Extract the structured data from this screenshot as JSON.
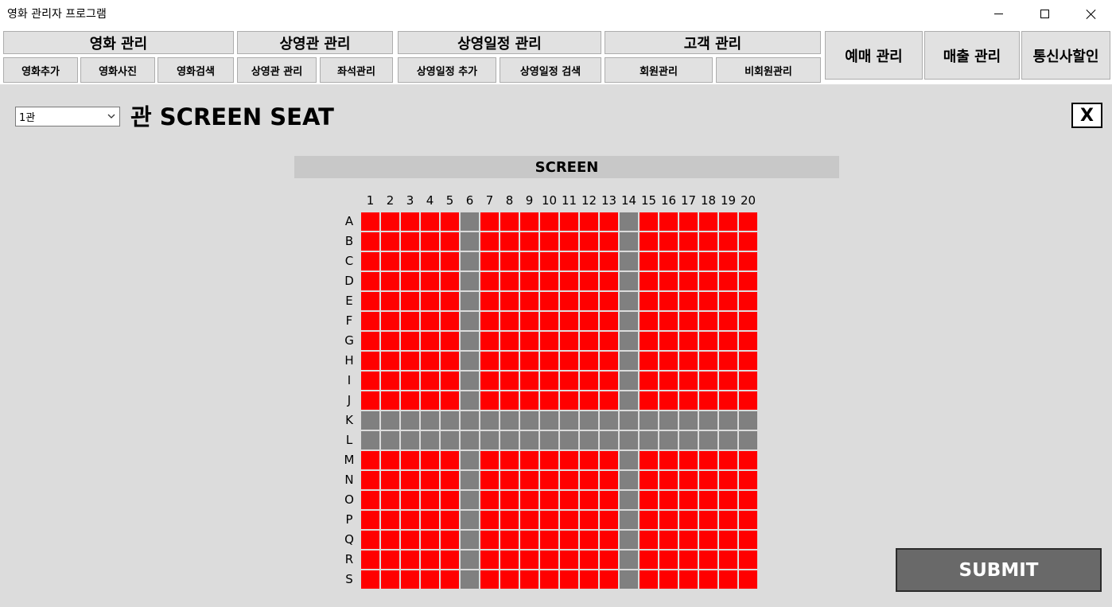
{
  "window": {
    "title": "영화 관리자 프로그램"
  },
  "menu": {
    "movie": {
      "label": "영화 관리",
      "items": [
        "영화추가",
        "영화사진",
        "영화검색"
      ]
    },
    "theater": {
      "label": "상영관 관리",
      "items": [
        "상영관 관리",
        "좌석관리"
      ]
    },
    "schedule": {
      "label": "상영일정 관리",
      "items": [
        "상영일정 추가",
        "상영일정 검색"
      ]
    },
    "customer": {
      "label": "고객 관리",
      "items": [
        "회원관리",
        "비회원관리"
      ]
    },
    "booking": "예매 관리",
    "sales": "매출 관리",
    "telecom": "통신사할인"
  },
  "main": {
    "theater_select_value": "1관",
    "heading": "관 SCREEN SEAT",
    "close_label": "X",
    "screen_label": "SCREEN",
    "submit_label": "SUBMIT"
  },
  "seating": {
    "columns": [
      "1",
      "2",
      "3",
      "4",
      "5",
      "6",
      "7",
      "8",
      "9",
      "10",
      "11",
      "12",
      "13",
      "14",
      "15",
      "16",
      "17",
      "18",
      "19",
      "20"
    ],
    "rows": [
      "A",
      "B",
      "C",
      "D",
      "E",
      "F",
      "G",
      "H",
      "I",
      "J",
      "K",
      "L",
      "M",
      "N",
      "O",
      "P",
      "Q",
      "R",
      "S"
    ],
    "aisle_columns": [
      "6",
      "14"
    ],
    "aisle_rows": [
      "K",
      "L"
    ],
    "colors": {
      "available": "#ff0000",
      "aisle": "#808080"
    }
  }
}
